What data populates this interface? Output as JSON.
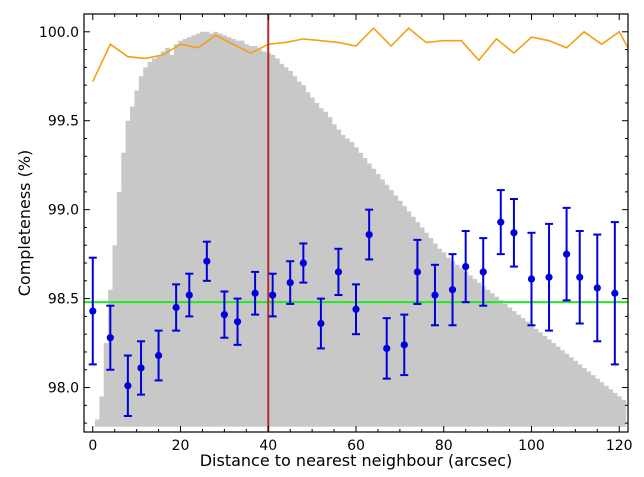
{
  "chart_data": {
    "type": "bar",
    "title": "",
    "xlabel": "Distance to nearest neighbour (arcsec)",
    "ylabel": "Completeness (%)",
    "xlim": [
      -2,
      122
    ],
    "ylim": [
      97.75,
      100.1
    ],
    "xticks": [
      0,
      20,
      40,
      60,
      80,
      100,
      120
    ],
    "yticks": [
      98.0,
      98.5,
      99.0,
      99.5,
      100.0
    ],
    "xtick_labels": [
      "0",
      "20",
      "40",
      "60",
      "80",
      "100",
      "120"
    ],
    "ytick_labels": [
      "98.0",
      "98.5",
      "99.0",
      "99.5",
      "100.0"
    ],
    "grid": false,
    "colors": {
      "histogram": "#c8c8c8",
      "completeness_line": "#f5a010",
      "points": "#0000dd",
      "mean_line": "#22e822",
      "vertical_line": "#b03030"
    },
    "histogram": {
      "bin_width": 1,
      "x_start": 1,
      "tops": [
        97.82,
        97.95,
        98.25,
        98.55,
        98.8,
        99.1,
        99.32,
        99.5,
        99.58,
        99.67,
        99.75,
        99.8,
        99.83,
        99.85,
        99.87,
        99.89,
        99.91,
        99.87,
        99.93,
        99.95,
        99.96,
        99.97,
        99.98,
        99.99,
        100.0,
        100.0,
        99.99,
        100.0,
        99.99,
        99.98,
        99.97,
        99.96,
        99.95,
        99.95,
        99.93,
        99.92,
        99.92,
        99.9,
        99.89,
        99.88,
        99.87,
        99.85,
        99.82,
        99.8,
        99.78,
        99.75,
        99.72,
        99.7,
        99.66,
        99.63,
        99.6,
        99.57,
        99.55,
        99.52,
        99.48,
        99.45,
        99.42,
        99.4,
        99.38,
        99.35,
        99.32,
        99.29,
        99.26,
        99.23,
        99.2,
        99.17,
        99.14,
        99.11,
        99.08,
        99.05,
        99.02,
        98.99,
        98.96,
        98.93,
        98.9,
        98.87,
        98.84,
        98.81,
        98.78,
        98.76,
        98.73,
        98.71,
        98.69,
        98.67,
        98.65,
        98.63,
        98.61,
        98.59,
        98.57,
        98.55,
        98.53,
        98.51,
        98.49,
        98.47,
        98.45,
        98.43,
        98.41,
        98.39,
        98.37,
        98.35,
        98.33,
        98.31,
        98.29,
        98.27,
        98.25,
        98.23,
        98.21,
        98.19,
        98.17,
        98.15,
        98.13,
        98.11,
        98.09,
        98.07,
        98.05,
        98.03,
        98.01,
        97.99,
        97.97,
        97.95,
        97.93
      ]
    },
    "completeness_line": {
      "x": [
        0,
        4,
        8,
        12,
        16,
        20,
        24,
        28,
        32,
        36,
        40,
        44,
        48,
        52,
        56,
        60,
        64,
        68,
        72,
        76,
        80,
        84,
        88,
        92,
        96,
        100,
        104,
        108,
        112,
        116,
        120,
        122
      ],
      "y": [
        99.72,
        99.93,
        99.86,
        99.85,
        99.87,
        99.93,
        99.91,
        99.98,
        99.93,
        99.88,
        99.93,
        99.94,
        99.96,
        99.95,
        99.94,
        99.92,
        100.02,
        99.92,
        100.02,
        99.94,
        99.95,
        99.95,
        99.84,
        99.96,
        99.88,
        99.97,
        99.95,
        99.91,
        100.0,
        99.93,
        100.0,
        99.91
      ]
    },
    "points": {
      "x": [
        0,
        4,
        8,
        11,
        15,
        19,
        22,
        26,
        30,
        33,
        37,
        41,
        45,
        48,
        52,
        56,
        60,
        63,
        67,
        71,
        74,
        78,
        82,
        85,
        89,
        93,
        96,
        100,
        104,
        108,
        111,
        115,
        119
      ],
      "y": [
        98.43,
        98.28,
        98.01,
        98.11,
        98.18,
        98.45,
        98.52,
        98.71,
        98.41,
        98.37,
        98.53,
        98.52,
        98.59,
        98.7,
        98.36,
        98.65,
        98.44,
        98.86,
        98.22,
        98.24,
        98.65,
        98.52,
        98.55,
        98.68,
        98.65,
        98.93,
        98.87,
        98.61,
        98.62,
        98.75,
        98.62,
        98.56,
        98.53
      ],
      "err": [
        0.3,
        0.18,
        0.17,
        0.15,
        0.14,
        0.13,
        0.12,
        0.11,
        0.13,
        0.13,
        0.12,
        0.12,
        0.12,
        0.11,
        0.14,
        0.13,
        0.14,
        0.14,
        0.17,
        0.17,
        0.18,
        0.17,
        0.2,
        0.2,
        0.19,
        0.18,
        0.19,
        0.26,
        0.3,
        0.26,
        0.26,
        0.3,
        0.4
      ]
    },
    "mean_line_y": 98.48,
    "vertical_line_x": 40
  }
}
